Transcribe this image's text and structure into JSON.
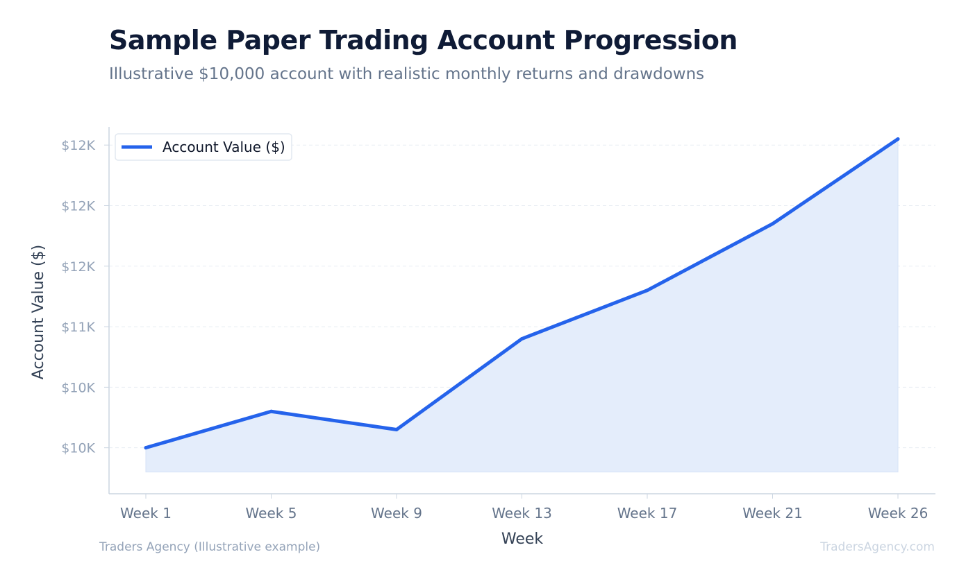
{
  "header": {
    "title": "Sample Paper Trading Account Progression",
    "subtitle": "Illustrative $10,000 account with realistic monthly returns and drawdowns"
  },
  "footer": {
    "source": "Traders Agency (Illustrative example)",
    "watermark": "TradersAgency.com"
  },
  "chart_data": {
    "type": "area",
    "xlabel": "Week",
    "ylabel": "Account Value ($)",
    "categories": [
      "Week 1",
      "Week 5",
      "Week 9",
      "Week 13",
      "Week 17",
      "Week 21",
      "Week 26"
    ],
    "series": [
      {
        "name": "Account Value ($)",
        "values": [
          10000,
          10300,
          10150,
          10900,
          11300,
          11850,
          12550
        ],
        "color": "#2563eb",
        "fill": "#e4edfb"
      }
    ],
    "ylim": [
      9620,
      12650
    ],
    "fill_baseline": 9800,
    "yticks": [
      {
        "value": 10000,
        "label": "$10K"
      },
      {
        "value": 10500,
        "label": "$10K"
      },
      {
        "value": 11000,
        "label": "$11K"
      },
      {
        "value": 11500,
        "label": "$12K"
      },
      {
        "value": 12000,
        "label": "$12K"
      },
      {
        "value": 12500,
        "label": "$12K"
      }
    ],
    "grid": true,
    "legend": "top-left"
  }
}
